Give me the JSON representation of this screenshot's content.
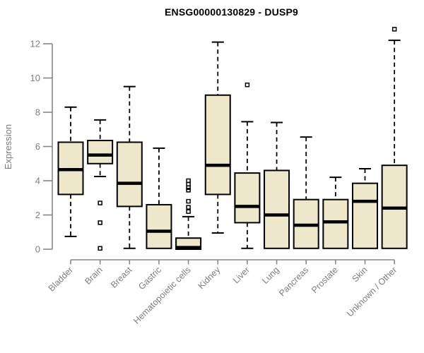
{
  "chart_data": {
    "type": "boxplot",
    "title": "ENSG00000130829 - DUSP9",
    "xlabel": "",
    "ylabel": "Expression",
    "ylim": [
      0,
      12
    ],
    "yticks": [
      0,
      2,
      4,
      6,
      8,
      10,
      12
    ],
    "grid": false,
    "legend": "none",
    "categories": [
      "Bladder",
      "Brain",
      "Breast",
      "Gastric",
      "Hematopoietic cells",
      "Kidney",
      "Liver",
      "Lung",
      "Pancreas",
      "Prostate",
      "Skin",
      "Unknown / Other"
    ],
    "series": [
      {
        "name": "Bladder",
        "whisker_low": 0.75,
        "q1": 3.2,
        "median": 4.65,
        "q3": 6.25,
        "whisker_high": 8.3,
        "outliers": []
      },
      {
        "name": "Brain",
        "whisker_low": 4.25,
        "q1": 5.0,
        "median": 5.5,
        "q3": 6.35,
        "whisker_high": 7.55,
        "outliers": [
          2.7,
          1.55,
          0.05
        ]
      },
      {
        "name": "Breast",
        "whisker_low": 0.05,
        "q1": 2.5,
        "median": 3.85,
        "q3": 6.25,
        "whisker_high": 9.5,
        "outliers": []
      },
      {
        "name": "Gastric",
        "whisker_low": 0.05,
        "q1": 0.05,
        "median": 1.05,
        "q3": 2.6,
        "whisker_high": 5.9,
        "outliers": []
      },
      {
        "name": "Hematopoietic cells",
        "whisker_low": 0.0,
        "q1": 0.0,
        "median": 0.1,
        "q3": 0.65,
        "whisker_high": 1.9,
        "outliers": [
          4.0,
          3.8,
          3.6,
          3.45,
          2.8,
          2.45,
          2.2
        ]
      },
      {
        "name": "Kidney",
        "whisker_low": 0.95,
        "q1": 3.2,
        "median": 4.9,
        "q3": 9.0,
        "whisker_high": 12.1,
        "outliers": []
      },
      {
        "name": "Liver",
        "whisker_low": 0.05,
        "q1": 1.55,
        "median": 2.5,
        "q3": 4.45,
        "whisker_high": 7.45,
        "outliers": [
          9.6
        ]
      },
      {
        "name": "Lung",
        "whisker_low": 0.05,
        "q1": 0.05,
        "median": 2.0,
        "q3": 4.6,
        "whisker_high": 7.4,
        "outliers": []
      },
      {
        "name": "Pancreas",
        "whisker_low": 0.05,
        "q1": 0.05,
        "median": 1.4,
        "q3": 2.9,
        "whisker_high": 6.55,
        "outliers": []
      },
      {
        "name": "Prostate",
        "whisker_low": 0.05,
        "q1": 0.05,
        "median": 1.6,
        "q3": 2.9,
        "whisker_high": 4.2,
        "outliers": []
      },
      {
        "name": "Skin",
        "whisker_low": 0.05,
        "q1": 0.05,
        "median": 2.8,
        "q3": 3.85,
        "whisker_high": 4.7,
        "outliers": []
      },
      {
        "name": "Unknown / Other",
        "whisker_low": 0.05,
        "q1": 0.05,
        "median": 2.4,
        "q3": 4.9,
        "whisker_high": 12.2,
        "outliers": [
          12.85
        ]
      }
    ],
    "colors": {
      "box_fill": "#EDE7CC",
      "box_stroke": "#000000",
      "median": "#000000",
      "whisker": "#000000",
      "outlier": "#000000",
      "axis": "#878787",
      "label_text": "#7E7E7E",
      "title_text": "#000000",
      "background": "#FFFFFF"
    }
  }
}
